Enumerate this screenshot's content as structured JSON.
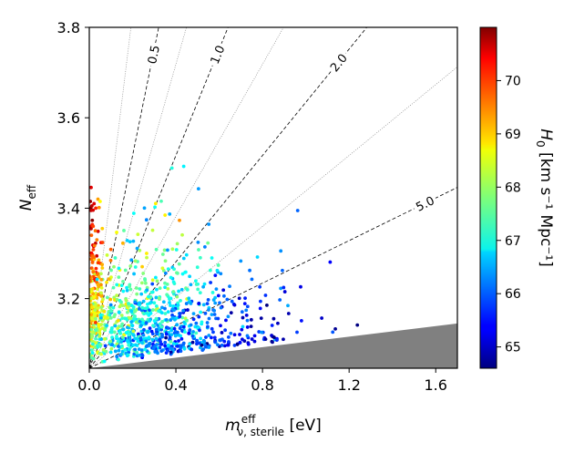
{
  "chart_data": {
    "type": "scatter",
    "title": "",
    "x_axis": {
      "label_main": "m",
      "label_sup": "eff",
      "label_sub": "ν, sterile",
      "label_unit": " [eV]",
      "range": [
        0.0,
        1.7
      ],
      "ticks": [
        0.0,
        0.4,
        0.8,
        1.2,
        1.6
      ],
      "tick_labels": [
        "0.0",
        "0.4",
        "0.8",
        "1.2",
        "1.6"
      ]
    },
    "y_axis": {
      "label_main": "N",
      "label_sub": "eff",
      "range": [
        3.046,
        3.8
      ],
      "ticks": [
        3.2,
        3.4,
        3.6,
        3.8
      ],
      "tick_labels": [
        "3.2",
        "3.4",
        "3.6",
        "3.8"
      ]
    },
    "colorbar": {
      "label_main": "H",
      "label_sub": "0",
      "label_unit": " [km s⁻¹ Mpc⁻¹]",
      "range": [
        64.6,
        71.0
      ],
      "ticks": [
        65,
        66,
        67,
        68,
        69,
        70
      ],
      "tick_labels": [
        "65",
        "66",
        "67",
        "68",
        "69",
        "70"
      ],
      "colormap": "jet"
    },
    "contours": [
      {
        "label": "0.5",
        "ratio": 0.5,
        "style": "dashed"
      },
      {
        "label": "1.0",
        "ratio": 1.0,
        "style": "dashed"
      },
      {
        "label": "2.0",
        "ratio": 2.0,
        "style": "dashed"
      },
      {
        "label": "5.0",
        "ratio": 5.0,
        "style": "dashed"
      },
      {
        "ratio": 0.7,
        "style": "dotted"
      },
      {
        "ratio": 1.4,
        "style": "dotted"
      },
      {
        "ratio": 3.0,
        "style": "dotted"
      },
      {
        "ratio": 0.3,
        "style": "dotted"
      }
    ],
    "excluded_region": {
      "description": "gray shaded excluded region",
      "color": "#808080",
      "boundary": [
        [
          0.0,
          3.046
        ],
        [
          1.7,
          3.145
        ]
      ]
    },
    "scatter": {
      "point_count": 1050,
      "seed": 20240607,
      "description": "MCMC samples colored by H0"
    }
  }
}
